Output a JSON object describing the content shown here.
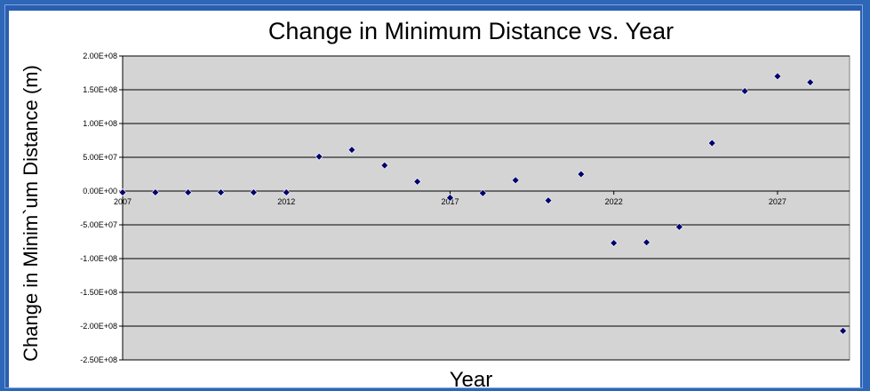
{
  "chart_data": {
    "type": "scatter",
    "title": "Change in Minimum Distance vs. Year",
    "xlabel": "Year",
    "ylabel": "Change in Minim`um Distance (m)",
    "xlim": [
      2007,
      2029.2
    ],
    "ylim": [
      -250000000,
      200000000
    ],
    "x_ticks": [
      2007,
      2012,
      2017,
      2022,
      2027
    ],
    "y_ticks": [
      200000000,
      150000000,
      100000000,
      50000000,
      0,
      -50000000,
      -100000000,
      -150000000,
      -200000000,
      -250000000
    ],
    "y_tick_labels": [
      "2.00E+08",
      "1.50E+08",
      "1.00E+08",
      "5.00E+07",
      "0.00E+00",
      "-5.00E+07",
      "-1.00E+08",
      "-1.50E+08",
      "-2.00E+08",
      "-2.50E+08"
    ],
    "x_tick_labels": [
      "2007",
      "2012",
      "2017",
      "2022",
      "2027"
    ],
    "grid": true,
    "colors": {
      "plot_bg": "#d4d4d4",
      "marker": "#00006e",
      "outer": "#2e66b8"
    },
    "series": [
      {
        "x": [
          2007,
          2008,
          2009,
          2010,
          2011,
          2012,
          2013,
          2014,
          2015,
          2016,
          2017,
          2018,
          2019,
          2020,
          2021,
          2022,
          2023,
          2024,
          2025,
          2026,
          2027,
          2028,
          2029
        ],
        "y": [
          -2000000,
          -2000000,
          -2000000,
          -2000000,
          -2000000,
          -2000000,
          51000000,
          61000000,
          38000000,
          14000000,
          -10000000,
          -3000000,
          16000000,
          -14000000,
          25000000,
          -77000000,
          -76000000,
          -53000000,
          71000000,
          148000000,
          170000000,
          161000000,
          -207000000
        ]
      }
    ]
  }
}
